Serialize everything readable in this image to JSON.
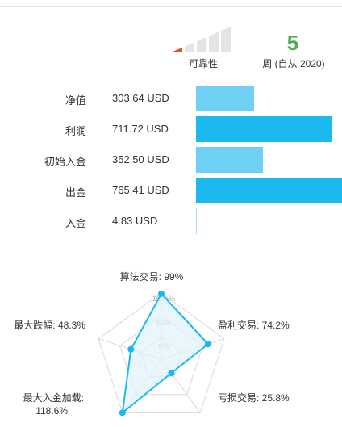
{
  "reliability": {
    "label": "可靠性",
    "filled_bars": 1,
    "total_bars": 5,
    "accent_color": "#e8502a"
  },
  "weeks": {
    "value": "5",
    "label": "周 (自从 2020)",
    "color": "#4caf50"
  },
  "stats": [
    {
      "label": "净值",
      "value": "303.64 USD",
      "fraction": 0.4,
      "bar_style": "light"
    },
    {
      "label": "利润",
      "value": "711.72 USD",
      "fraction": 0.93,
      "bar_style": "dark"
    },
    {
      "label": "初始入金",
      "value": "352.50 USD",
      "fraction": 0.46,
      "bar_style": "light"
    },
    {
      "label": "出金",
      "value": "765.41 USD",
      "fraction": 1.0,
      "bar_style": "dark"
    },
    {
      "label": "入金",
      "value": "4.83 USD",
      "fraction": 0.006,
      "bar_style": "thin"
    }
  ],
  "chart_data": {
    "type": "radar",
    "max": 100,
    "ring_labels": [
      "0%",
      "50%",
      "100+%"
    ],
    "axes": [
      {
        "label": "算法交易: 99%",
        "value": 99
      },
      {
        "label": "盈利交易: 74.2%",
        "value": 74.2
      },
      {
        "label": "亏损交易: 25.8%",
        "value": 25.8
      },
      {
        "label": "最大入金加载:",
        "label2": "118.6%",
        "value": 118.6
      },
      {
        "label": "最大跌幅: 48.3%",
        "value": 48.3
      }
    ],
    "series_color": "#1bb8ee",
    "fill_color": "#dff3fb"
  }
}
